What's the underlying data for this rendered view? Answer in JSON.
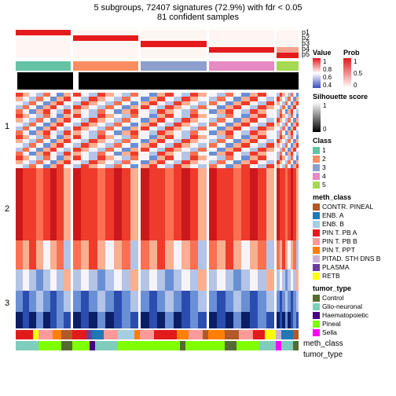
{
  "title": "5 subgroups, 72407 signatures (72.9%) with fdr < 0.05",
  "subtitle": "81 confident samples",
  "prob_row_labels": [
    "p1",
    "p2",
    "p3",
    "p4",
    "p5"
  ],
  "row_group_labels": [
    "1",
    "2",
    "3"
  ],
  "bottom_labels": [
    "meth_class",
    "tumor_type"
  ],
  "groups": [
    {
      "width": 0.2,
      "class_color": "#66c2a5",
      "prob_active_row": 0
    },
    {
      "width": 0.24,
      "class_color": "#fc8d62",
      "prob_active_row": 1
    },
    {
      "width": 0.24,
      "class_color": "#8da0cb",
      "prob_active_row": 2
    },
    {
      "width": 0.24,
      "class_color": "#e78ac3",
      "prob_active_row": 3
    },
    {
      "width": 0.08,
      "class_color": "#a6d854",
      "prob_active_row": 4
    }
  ],
  "prob_colors": {
    "hi": "#e41a1c",
    "mid": "#f8a18f",
    "low": "#fde1d8",
    "off": "#fef6f3"
  },
  "sil_colors": [
    "#000000",
    "#ffffff",
    "#000000",
    "#000000",
    "#000000"
  ],
  "sil_split": [
    [
      0.03,
      0.97
    ],
    [
      0.06,
      0.03,
      0.91
    ],
    [
      1.0
    ],
    [
      1.0
    ],
    [
      1.0
    ]
  ],
  "heatmap_palette": {
    "red_hi": "#cb181d",
    "red": "#ef3b2c",
    "red_lo": "#fb7050",
    "pink": "#fcae91",
    "white": "#f7f4f9",
    "lblue": "#b3c4e6",
    "blue": "#6a8fd4",
    "blue_hi": "#2b4db0",
    "dblue": "#0a1f66"
  },
  "heatmap_rows_1": 18,
  "heatmap_rows_2": 24,
  "heatmap_rows_3": 14,
  "meth_class_colors": {
    "CONTR. PINEAL": "#b15928",
    "ENB. A": "#1f78b4",
    "ENB. B": "#a6cee3",
    "PIN T. PB A": "#e31a1c",
    "PIN T. PB B": "#fb9a99",
    "PIN T. PPT": "#ff7f00",
    "PITAD. STH DNS B": "#cab2d6",
    "PLASMA": "#6a3d9a",
    "RETB": "#ffff00"
  },
  "tumor_type_colors": {
    "Control": "#556b2f",
    "Glio-neuronal": "#7fcdbb",
    "Haematopoietic": "#4b0082",
    "Pineal": "#7fff00",
    "Sella": "#ff00ff"
  },
  "meth_bar": [
    [
      "#e31a1c",
      0.06
    ],
    [
      "#ffff00",
      0.02
    ],
    [
      "#fb9a99",
      0.05
    ],
    [
      "#ff7f00",
      0.03
    ],
    [
      "#b15928",
      0.04
    ],
    [
      "#e31a1c",
      0.05
    ],
    [
      "#6a3d9a",
      0.02
    ],
    [
      "#1f78b4",
      0.04
    ],
    [
      "#fb9a99",
      0.05
    ],
    [
      "#a6cee3",
      0.06
    ],
    [
      "#ff7f00",
      0.02
    ],
    [
      "#fb9a99",
      0.05
    ],
    [
      "#e31a1c",
      0.08
    ],
    [
      "#ff7f00",
      0.04
    ],
    [
      "#fb9a99",
      0.05
    ],
    [
      "#b15928",
      0.02
    ],
    [
      "#ff7f00",
      0.06
    ],
    [
      "#b15928",
      0.05
    ],
    [
      "#fb9a99",
      0.05
    ],
    [
      "#e31a1c",
      0.04
    ],
    [
      "#ffff00",
      0.04
    ],
    [
      "#cab2d6",
      0.02
    ],
    [
      "#1f78b4",
      0.04
    ],
    [
      "#b15928",
      0.02
    ]
  ],
  "tumor_bar": [
    [
      "#7fcdbb",
      0.08
    ],
    [
      "#7fff00",
      0.08
    ],
    [
      "#556b2f",
      0.04
    ],
    [
      "#7fff00",
      0.06
    ],
    [
      "#4b0082",
      0.02
    ],
    [
      "#7fcdbb",
      0.08
    ],
    [
      "#7fff00",
      0.08
    ],
    [
      "#7fff00",
      0.14
    ],
    [
      "#556b2f",
      0.02
    ],
    [
      "#7fff00",
      0.08
    ],
    [
      "#7fff00",
      0.06
    ],
    [
      "#556b2f",
      0.04
    ],
    [
      "#7fff00",
      0.08
    ],
    [
      "#7fcdbb",
      0.06
    ],
    [
      "#ff00ff",
      0.02
    ],
    [
      "#7fcdbb",
      0.04
    ],
    [
      "#556b2f",
      0.02
    ]
  ],
  "legends": {
    "value": {
      "title": "Value",
      "ticks": [
        "1",
        "0.8",
        "0.6",
        "0.4"
      ],
      "grad": [
        "#e41a1c",
        "#ffffff",
        "#3b4cc0"
      ]
    },
    "prob": {
      "title": "Prob",
      "ticks": [
        "1",
        "0.5",
        "0"
      ],
      "grad": [
        "#e41a1c",
        "#ffffff"
      ]
    },
    "silhouette": {
      "title": "Silhouette\nscore",
      "ticks": [
        "1",
        "0"
      ],
      "grad": [
        "#ffffff",
        "#000000"
      ]
    },
    "class": {
      "title": "Class",
      "items": [
        [
          "1",
          "#66c2a5"
        ],
        [
          "2",
          "#fc8d62"
        ],
        [
          "3",
          "#8da0cb"
        ],
        [
          "4",
          "#e78ac3"
        ],
        [
          "5",
          "#a6d854"
        ]
      ]
    },
    "meth": {
      "title": "meth_class",
      "items": [
        [
          "CONTR. PINEAL",
          "#b15928"
        ],
        [
          "ENB. A",
          "#1f78b4"
        ],
        [
          "ENB. B",
          "#a6cee3"
        ],
        [
          "PIN T. PB A",
          "#e31a1c"
        ],
        [
          "PIN T. PB B",
          "#fb9a99"
        ],
        [
          "PIN T. PPT",
          "#ff7f00"
        ],
        [
          "PITAD. STH DNS B",
          "#cab2d6"
        ],
        [
          "PLASMA",
          "#6a3d9a"
        ],
        [
          "RETB",
          "#ffff00"
        ]
      ]
    },
    "tumor": {
      "title": "tumor_type",
      "items": [
        [
          "Control",
          "#556b2f"
        ],
        [
          "Glio-neuronal",
          "#7fcdbb"
        ],
        [
          "Haematopoietic",
          "#4b0082"
        ],
        [
          "Pineal",
          "#7fff00"
        ],
        [
          "Sella",
          "#ff00ff"
        ]
      ]
    }
  }
}
